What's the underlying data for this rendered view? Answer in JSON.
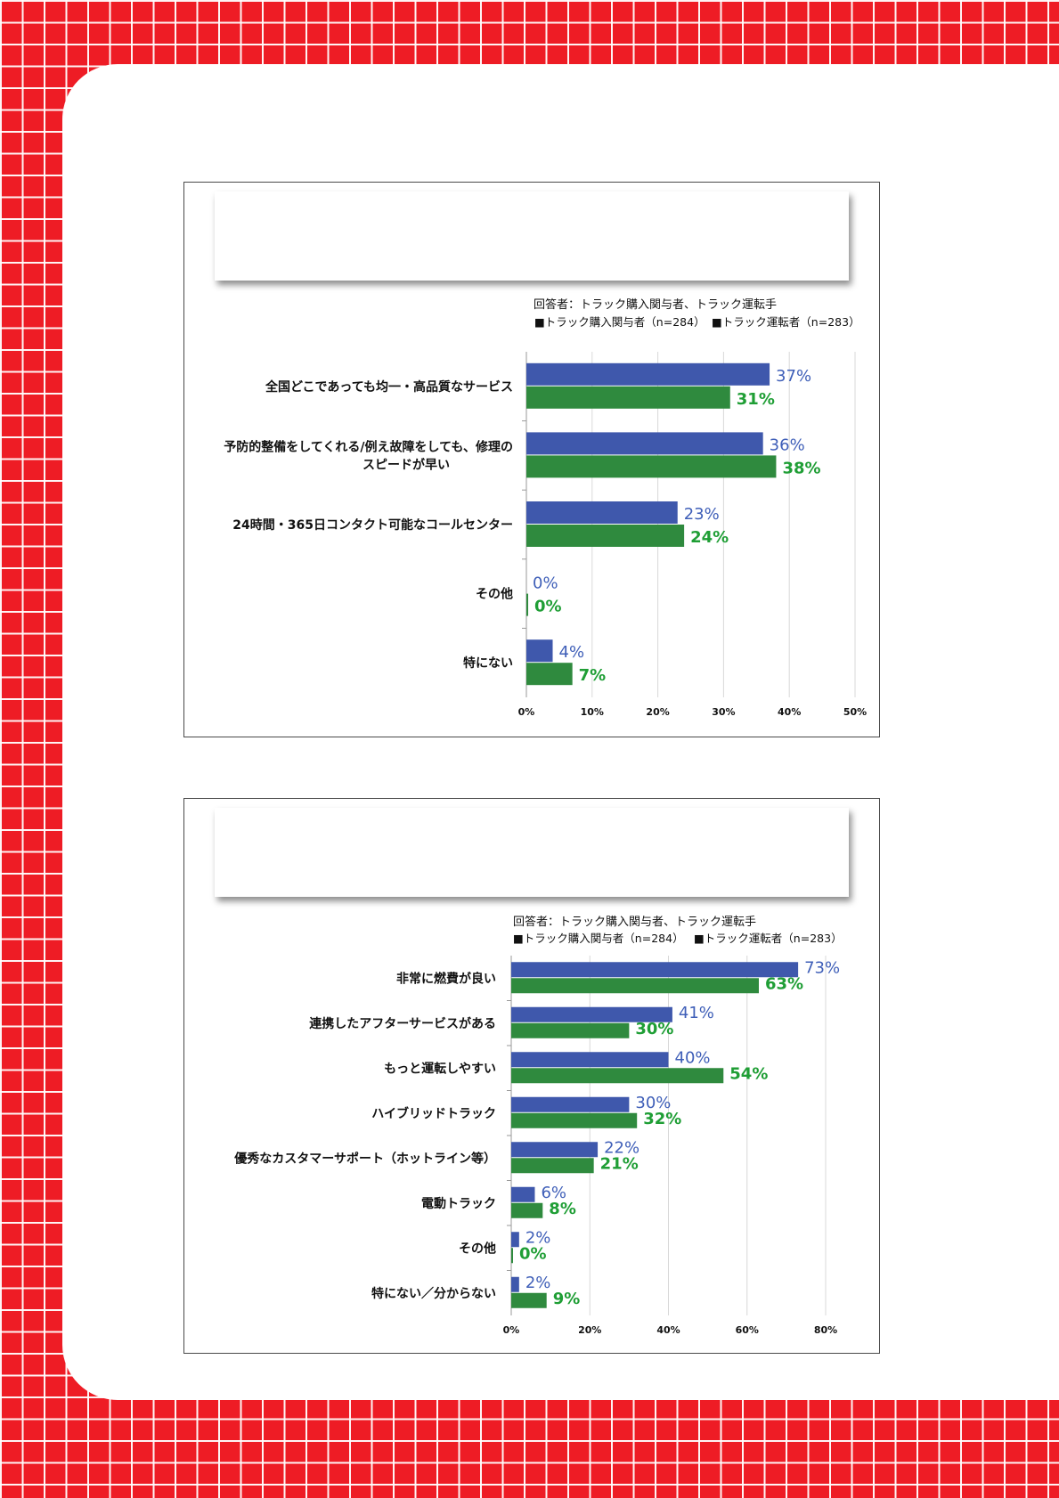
{
  "colors": {
    "background": "#ee1c25",
    "grid_lines": "#ffffff",
    "card": "#ffffff",
    "series1": "#3f58ac",
    "series2": "#2f8a3e",
    "label1": "#3f5fb8",
    "label2": "#1f9e35"
  },
  "chart_data": [
    {
      "type": "bar",
      "orientation": "horizontal",
      "note": "回答者：トラック購入関与者、トラック運転手",
      "categories": [
        "全国どこであっても均一・高品質なサービス",
        "予防的整備をしてくれる/例え故障をしても、修理の\nスピードが早い",
        "24時間・365日コンタクト可能なコールセンター",
        "その他",
        "特にない"
      ],
      "series": [
        {
          "name": "■トラック購入関与者（n=284）",
          "values": [
            37,
            36,
            23,
            0,
            4
          ],
          "labels": [
            "37%",
            "36%",
            "23%",
            "0%",
            "4%"
          ]
        },
        {
          "name": "■トラック運転者（n=283）",
          "values": [
            31,
            38,
            24,
            0,
            7
          ],
          "labels": [
            "31%",
            "38%",
            "24%",
            "0%",
            "7%"
          ]
        }
      ],
      "xlim": [
        0,
        50
      ],
      "xticks": [
        "0%",
        "10%",
        "20%",
        "30%",
        "40%",
        "50%"
      ],
      "grid": true,
      "legend": "top-right",
      "title": "",
      "xlabel": "",
      "ylabel": ""
    },
    {
      "type": "bar",
      "orientation": "horizontal",
      "note": "回答者：トラック購入関与者、トラック運転手",
      "categories": [
        "非常に燃費が良い",
        "連携したアフターサービスがある",
        "もっと運転しやすい",
        "ハイブリッドトラック",
        "優秀なカスタマーサポート（ホットライン等）",
        "電動トラック",
        "その他",
        "特にない／分からない"
      ],
      "series": [
        {
          "name": "■トラック購入関与者（n=284）",
          "values": [
            73,
            41,
            40,
            30,
            22,
            6,
            2,
            2
          ],
          "labels": [
            "73%",
            "41%",
            "40%",
            "30%",
            "22%",
            "6%",
            "2%",
            "2%"
          ]
        },
        {
          "name": "■トラック運転者（n=283）",
          "values": [
            63,
            30,
            54,
            32,
            21,
            8,
            0,
            9
          ],
          "labels": [
            "63%",
            "30%",
            "54%",
            "32%",
            "21%",
            "8%",
            "0%",
            "9%"
          ]
        }
      ],
      "xlim": [
        0,
        80
      ],
      "xticks": [
        "0%",
        "20%",
        "40%",
        "60%",
        "80%"
      ],
      "grid": true,
      "legend": "top-right",
      "title": "",
      "xlabel": "",
      "ylabel": ""
    }
  ]
}
